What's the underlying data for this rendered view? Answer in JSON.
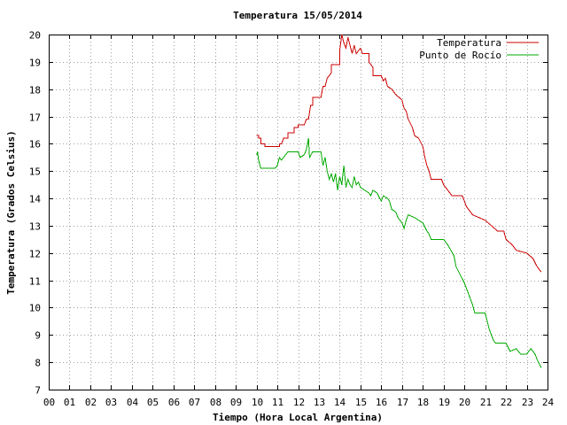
{
  "chart_data": {
    "type": "line",
    "title": "Temperatura 15/05/2014",
    "xlabel": "Tiempo (Hora Local Argentina)",
    "ylabel": "Temperatura (Grados Celsius)",
    "xlim": [
      0,
      24
    ],
    "ylim": [
      7,
      20
    ],
    "x_ticks": [
      "00",
      "01",
      "02",
      "03",
      "04",
      "05",
      "06",
      "07",
      "08",
      "09",
      "10",
      "11",
      "12",
      "13",
      "14",
      "15",
      "16",
      "17",
      "18",
      "19",
      "20",
      "21",
      "22",
      "23",
      "24"
    ],
    "y_ticks": [
      7,
      8,
      9,
      10,
      11,
      12,
      13,
      14,
      15,
      16,
      17,
      18,
      19,
      20
    ],
    "grid": true,
    "legend_position": "top-right",
    "colors": {
      "temperatura": "#cc0000",
      "punto_de_rocio": "#00aa00"
    },
    "series": [
      {
        "name": "Temperatura",
        "color": "#cc0000",
        "points": [
          [
            10.0,
            16.3
          ],
          [
            10.1,
            16.3
          ],
          [
            10.1,
            16.2
          ],
          [
            10.2,
            16.2
          ],
          [
            10.2,
            16.0
          ],
          [
            10.4,
            16.0
          ],
          [
            10.4,
            15.9
          ],
          [
            11.1,
            15.9
          ],
          [
            11.1,
            16.0
          ],
          [
            11.2,
            16.0
          ],
          [
            11.3,
            16.2
          ],
          [
            11.5,
            16.2
          ],
          [
            11.5,
            16.4
          ],
          [
            11.8,
            16.4
          ],
          [
            11.8,
            16.6
          ],
          [
            12.0,
            16.6
          ],
          [
            12.0,
            16.7
          ],
          [
            12.3,
            16.7
          ],
          [
            12.4,
            16.9
          ],
          [
            12.5,
            16.9
          ],
          [
            12.6,
            17.4
          ],
          [
            12.7,
            17.4
          ],
          [
            12.7,
            17.7
          ],
          [
            13.1,
            17.7
          ],
          [
            13.2,
            18.1
          ],
          [
            13.3,
            18.1
          ],
          [
            13.4,
            18.4
          ],
          [
            13.6,
            18.6
          ],
          [
            13.6,
            18.9
          ],
          [
            14.0,
            18.9
          ],
          [
            14.0,
            19.4
          ],
          [
            14.1,
            20.0
          ],
          [
            14.2,
            19.7
          ],
          [
            14.3,
            19.5
          ],
          [
            14.4,
            19.9
          ],
          [
            14.5,
            19.6
          ],
          [
            14.6,
            19.3
          ],
          [
            14.7,
            19.6
          ],
          [
            14.8,
            19.3
          ],
          [
            15.0,
            19.5
          ],
          [
            15.1,
            19.3
          ],
          [
            15.4,
            19.3
          ],
          [
            15.4,
            19.0
          ],
          [
            15.6,
            18.8
          ],
          [
            15.6,
            18.5
          ],
          [
            16.0,
            18.5
          ],
          [
            16.1,
            18.3
          ],
          [
            16.2,
            18.4
          ],
          [
            16.3,
            18.1
          ],
          [
            16.5,
            18.0
          ],
          [
            16.7,
            17.8
          ],
          [
            17.0,
            17.6
          ],
          [
            17.1,
            17.3
          ],
          [
            17.2,
            17.2
          ],
          [
            17.3,
            16.9
          ],
          [
            17.5,
            16.6
          ],
          [
            17.6,
            16.3
          ],
          [
            17.8,
            16.2
          ],
          [
            18.0,
            15.9
          ],
          [
            18.1,
            15.5
          ],
          [
            18.2,
            15.2
          ],
          [
            18.3,
            15.0
          ],
          [
            18.4,
            14.7
          ],
          [
            18.9,
            14.7
          ],
          [
            19.0,
            14.5
          ],
          [
            19.2,
            14.3
          ],
          [
            19.4,
            14.1
          ],
          [
            19.9,
            14.1
          ],
          [
            20.1,
            13.7
          ],
          [
            20.4,
            13.4
          ],
          [
            20.7,
            13.3
          ],
          [
            21.0,
            13.2
          ],
          [
            21.3,
            13.0
          ],
          [
            21.6,
            12.8
          ],
          [
            21.9,
            12.8
          ],
          [
            22.0,
            12.5
          ],
          [
            22.3,
            12.3
          ],
          [
            22.5,
            12.1
          ],
          [
            23.0,
            12.0
          ],
          [
            23.3,
            11.8
          ],
          [
            23.5,
            11.5
          ],
          [
            23.7,
            11.3
          ]
        ]
      },
      {
        "name": "Punto de Rocío",
        "color": "#00aa00",
        "points": [
          [
            10.0,
            15.6
          ],
          [
            10.05,
            15.7
          ],
          [
            10.1,
            15.4
          ],
          [
            10.2,
            15.1
          ],
          [
            10.9,
            15.1
          ],
          [
            11.0,
            15.2
          ],
          [
            11.1,
            15.5
          ],
          [
            11.2,
            15.4
          ],
          [
            11.4,
            15.6
          ],
          [
            11.5,
            15.7
          ],
          [
            12.0,
            15.7
          ],
          [
            12.1,
            15.5
          ],
          [
            12.3,
            15.6
          ],
          [
            12.4,
            15.8
          ],
          [
            12.5,
            16.2
          ],
          [
            12.55,
            15.5
          ],
          [
            12.7,
            15.7
          ],
          [
            13.1,
            15.7
          ],
          [
            13.2,
            15.2
          ],
          [
            13.3,
            15.5
          ],
          [
            13.4,
            15.0
          ],
          [
            13.5,
            14.7
          ],
          [
            13.6,
            14.9
          ],
          [
            13.7,
            14.6
          ],
          [
            13.8,
            14.9
          ],
          [
            13.9,
            14.3
          ],
          [
            14.0,
            14.8
          ],
          [
            14.1,
            14.5
          ],
          [
            14.2,
            15.2
          ],
          [
            14.3,
            14.4
          ],
          [
            14.4,
            14.7
          ],
          [
            14.5,
            14.5
          ],
          [
            14.6,
            14.4
          ],
          [
            14.7,
            14.8
          ],
          [
            14.8,
            14.5
          ],
          [
            14.9,
            14.6
          ],
          [
            15.0,
            14.4
          ],
          [
            15.2,
            14.3
          ],
          [
            15.4,
            14.2
          ],
          [
            15.5,
            14.1
          ],
          [
            15.6,
            14.3
          ],
          [
            15.8,
            14.2
          ],
          [
            16.0,
            13.9
          ],
          [
            16.1,
            14.1
          ],
          [
            16.3,
            14.0
          ],
          [
            16.4,
            13.9
          ],
          [
            16.5,
            13.6
          ],
          [
            16.7,
            13.5
          ],
          [
            16.8,
            13.3
          ],
          [
            17.0,
            13.1
          ],
          [
            17.1,
            12.9
          ],
          [
            17.2,
            13.2
          ],
          [
            17.3,
            13.4
          ],
          [
            17.6,
            13.3
          ],
          [
            17.8,
            13.2
          ],
          [
            18.0,
            13.1
          ],
          [
            18.2,
            12.8
          ],
          [
            18.3,
            12.7
          ],
          [
            18.4,
            12.5
          ],
          [
            19.0,
            12.5
          ],
          [
            19.2,
            12.3
          ],
          [
            19.5,
            11.9
          ],
          [
            19.6,
            11.5
          ],
          [
            19.8,
            11.2
          ],
          [
            20.0,
            10.9
          ],
          [
            20.2,
            10.5
          ],
          [
            20.4,
            10.1
          ],
          [
            20.5,
            9.8
          ],
          [
            21.0,
            9.8
          ],
          [
            21.2,
            9.2
          ],
          [
            21.4,
            8.8
          ],
          [
            21.5,
            8.7
          ],
          [
            22.0,
            8.7
          ],
          [
            22.2,
            8.4
          ],
          [
            22.5,
            8.5
          ],
          [
            22.7,
            8.3
          ],
          [
            23.0,
            8.3
          ],
          [
            23.2,
            8.5
          ],
          [
            23.4,
            8.3
          ],
          [
            23.5,
            8.1
          ],
          [
            23.7,
            7.8
          ]
        ]
      }
    ]
  }
}
